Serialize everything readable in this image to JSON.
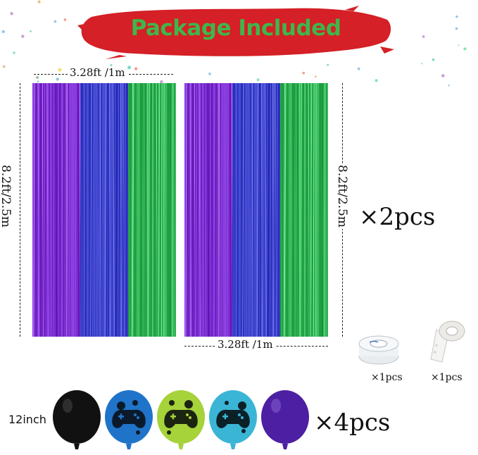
{
  "banner": {
    "title": "Package Included",
    "color": "#d42026",
    "text_color": "#3fb64a"
  },
  "curtains": {
    "width_label": "3.28ft /1m",
    "height_label": "8.2ft/2.5m",
    "quantity": "×2pcs",
    "colors": [
      "#7b2fd0",
      "#3a3fc8",
      "#2fae52"
    ]
  },
  "accessories": [
    {
      "name": "balloon ribbon",
      "icon": "ribbon-roll-icon",
      "quantity": "×1pcs"
    },
    {
      "name": "glue dots",
      "icon": "glue-dot-tape-icon",
      "quantity": "×1pcs"
    }
  ],
  "balloons": {
    "size_label": "12inch",
    "quantity": "×4pcs",
    "colors": [
      "#111111",
      "#1f74c9",
      "#a6d23a",
      "#3bb5d6",
      "#4d1fa3"
    ],
    "printed_icon": "game-controller-icon"
  }
}
